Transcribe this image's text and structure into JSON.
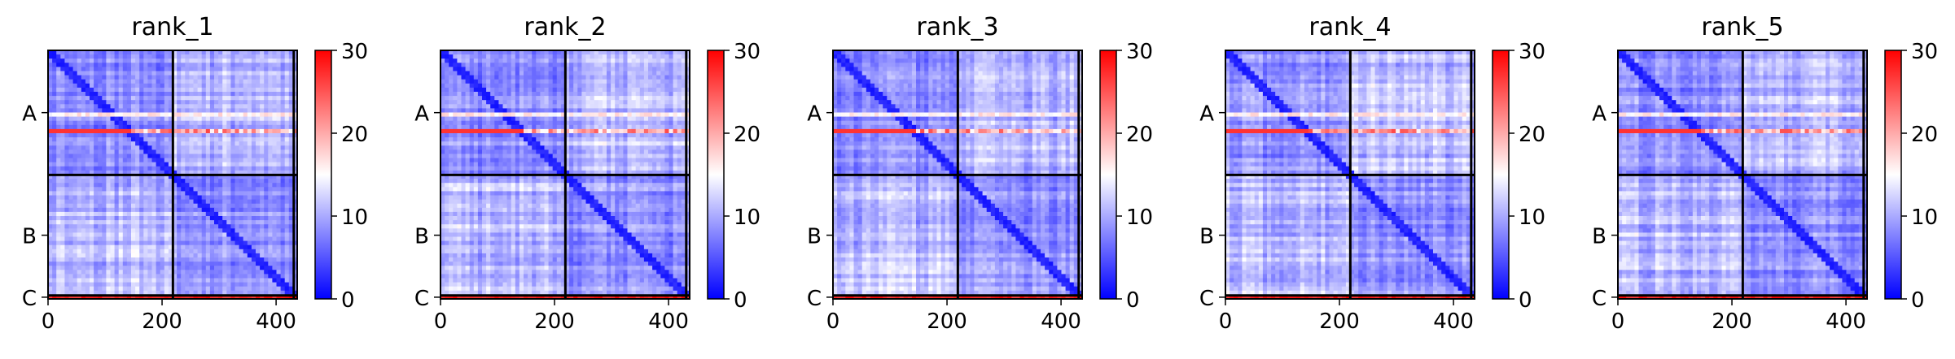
{
  "chart_data": {
    "type": "heatmap",
    "colormap": {
      "name": "bwr",
      "low": "#0000ff",
      "mid": "#ffffff",
      "high": "#ff0000"
    },
    "x_ticks": [
      0,
      200,
      400
    ],
    "xlim": [
      0,
      437
    ],
    "chain_labels": [
      "A",
      "B",
      "C"
    ],
    "chain_boundaries": [
      0,
      219,
      431,
      437
    ],
    "colorbar": {
      "min": 0,
      "max": 30,
      "ticks": [
        0,
        10,
        20,
        30
      ]
    },
    "panels": [
      {
        "title": "rank_1",
        "seed": 11
      },
      {
        "title": "rank_2",
        "seed": 23
      },
      {
        "title": "rank_3",
        "seed": 37
      },
      {
        "title": "rank_4",
        "seed": 41
      },
      {
        "title": "rank_5",
        "seed": 59
      }
    ]
  }
}
